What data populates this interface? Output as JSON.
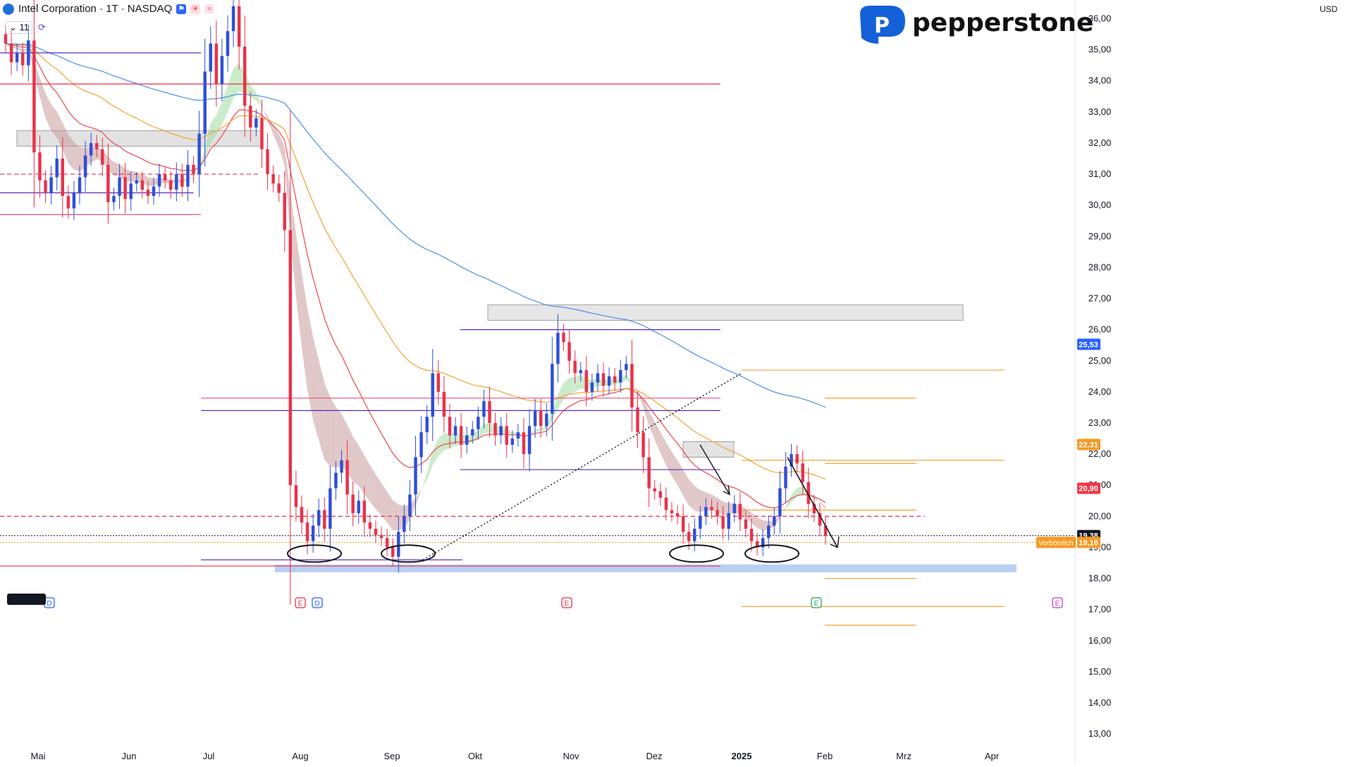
{
  "header": {
    "symbol": "Intel Corporation · 1T · NASDAQ",
    "indicator_count": "11",
    "currency": "USD"
  },
  "brand": {
    "name": "pepperstone",
    "color": "#1460d8"
  },
  "colors": {
    "bull": "#2e4fd6",
    "bear": "#e8324a",
    "ema_red": "#f0474f",
    "ema_orange": "#f5a233",
    "ema_blue": "#4a8fe8",
    "cloud_bear": "#c89a9a",
    "cloud_bull": "#9fdca0",
    "level_purple": "#5b2bc0",
    "level_pink": "#e8547a",
    "fib_orange": "#f59a23"
  },
  "chart_data": {
    "type": "candlestick",
    "ylim": [
      12.8,
      36.6
    ],
    "y_ticks": [
      "13,00",
      "14,00",
      "15,00",
      "16,00",
      "17,00",
      "18,00",
      "19,00",
      "20,00",
      "21,00",
      "22,00",
      "23,00",
      "24,00",
      "25,00",
      "26,00",
      "27,00",
      "28,00",
      "29,00",
      "30,00",
      "31,00",
      "32,00",
      "33,00",
      "34,00",
      "35,00",
      "36,00"
    ],
    "x_ticks": [
      "Mai",
      "Jun",
      "Jul",
      "Aug",
      "Sep",
      "Okt",
      "Nov",
      "Dez",
      "2025",
      "Feb",
      "Mrz",
      "Apr"
    ],
    "price_tags": [
      {
        "label": "25,53",
        "value": 25.53,
        "color": "#2962ff"
      },
      {
        "label": "22,31",
        "value": 22.31,
        "color": "#f59a23"
      },
      {
        "label": "20,90",
        "value": 20.9,
        "color": "#f23645"
      },
      {
        "label": "19,38",
        "value": 19.38,
        "color": "#131722"
      },
      {
        "label": "19,16",
        "value": 19.16,
        "color": "#f59a23"
      }
    ],
    "premarket_label": "Vorbörslich",
    "closes": [
      35.2,
      34.6,
      34.9,
      34.5,
      35.3,
      31.7,
      30.8,
      30.4,
      30.9,
      31.5,
      30.3,
      29.9,
      30.4,
      30.9,
      31.6,
      32.0,
      31.8,
      31.3,
      30.1,
      30.3,
      30.9,
      30.2,
      30.7,
      30.8,
      30.5,
      30.3,
      30.6,
      31.0,
      30.8,
      30.5,
      31.0,
      30.6,
      31.3,
      31.0,
      32.3,
      34.3,
      35.2,
      33.9,
      34.8,
      35.6,
      36.4,
      35.1,
      33.2,
      32.5,
      32.8,
      31.8,
      31.0,
      30.7,
      30.4,
      29.2,
      21.0,
      20.3,
      19.8,
      19.2,
      19.7,
      20.2,
      19.6,
      20.9,
      21.4,
      21.8,
      20.7,
      20.1,
      20.5,
      19.8,
      19.6,
      19.4,
      19.3,
      19.0,
      18.7,
      19.5,
      20.0,
      20.7,
      21.9,
      22.7,
      23.2,
      24.6,
      24.0,
      23.2,
      22.6,
      22.9,
      22.3,
      22.6,
      22.8,
      23.2,
      23.7,
      23.0,
      22.6,
      22.9,
      22.3,
      22.5,
      22.7,
      22.0,
      22.9,
      23.4,
      22.9,
      23.3,
      24.9,
      25.9,
      25.6,
      25.0,
      24.6,
      24.7,
      24.0,
      24.3,
      24.6,
      24.2,
      24.5,
      24.3,
      24.7,
      24.9,
      23.5,
      22.7,
      21.9,
      20.9,
      20.8,
      20.6,
      20.2,
      20.1,
      20.0,
      19.5,
      19.2,
      19.6,
      20.0,
      20.3,
      20.2,
      20.0,
      19.6,
      20.1,
      20.4,
      19.9,
      19.6,
      19.2,
      19.0,
      19.3,
      19.7,
      20.0,
      20.9,
      21.6,
      22.0,
      21.7,
      21.1,
      20.4,
      20.1,
      19.7,
      19.38
    ],
    "levels": [
      {
        "y": 34.9,
        "x0": 0.0,
        "x1": 0.187,
        "color": "#5b2bc0",
        "style": "solid"
      },
      {
        "y": 33.9,
        "x0": 0.0,
        "x1": 0.67,
        "color": "#e8324a",
        "style": "solid"
      },
      {
        "y": 31.0,
        "x0": 0.0,
        "x1": 0.24,
        "color": "#e8324a",
        "style": "dashed"
      },
      {
        "y": 30.4,
        "x0": 0.0,
        "x1": 0.18,
        "color": "#5b2bc0",
        "style": "solid"
      },
      {
        "y": 29.7,
        "x0": 0.0,
        "x1": 0.187,
        "color": "#e8547a",
        "style": "solid"
      },
      {
        "y": 26.0,
        "x0": 0.428,
        "x1": 0.67,
        "color": "#5b2bc0",
        "style": "solid"
      },
      {
        "y": 23.8,
        "x0": 0.187,
        "x1": 0.67,
        "color": "#e8547a",
        "style": "solid"
      },
      {
        "y": 23.4,
        "x0": 0.187,
        "x1": 0.67,
        "color": "#5b2bc0",
        "style": "solid"
      },
      {
        "y": 21.5,
        "x0": 0.428,
        "x1": 0.67,
        "color": "#5b2bc0",
        "style": "solid"
      },
      {
        "y": 20.0,
        "x0": 0.0,
        "x1": 0.86,
        "color": "#e8324a",
        "style": "dashed"
      },
      {
        "y": 18.6,
        "x0": 0.187,
        "x1": 0.43,
        "color": "#5b2bc0",
        "style": "solid"
      },
      {
        "y": 18.4,
        "x0": 0.0,
        "x1": 0.67,
        "color": "#e8324a",
        "style": "solid"
      }
    ],
    "fib_levels": [
      24.7,
      23.8,
      21.8,
      21.7,
      20.2,
      18.0,
      17.1,
      16.5
    ]
  }
}
